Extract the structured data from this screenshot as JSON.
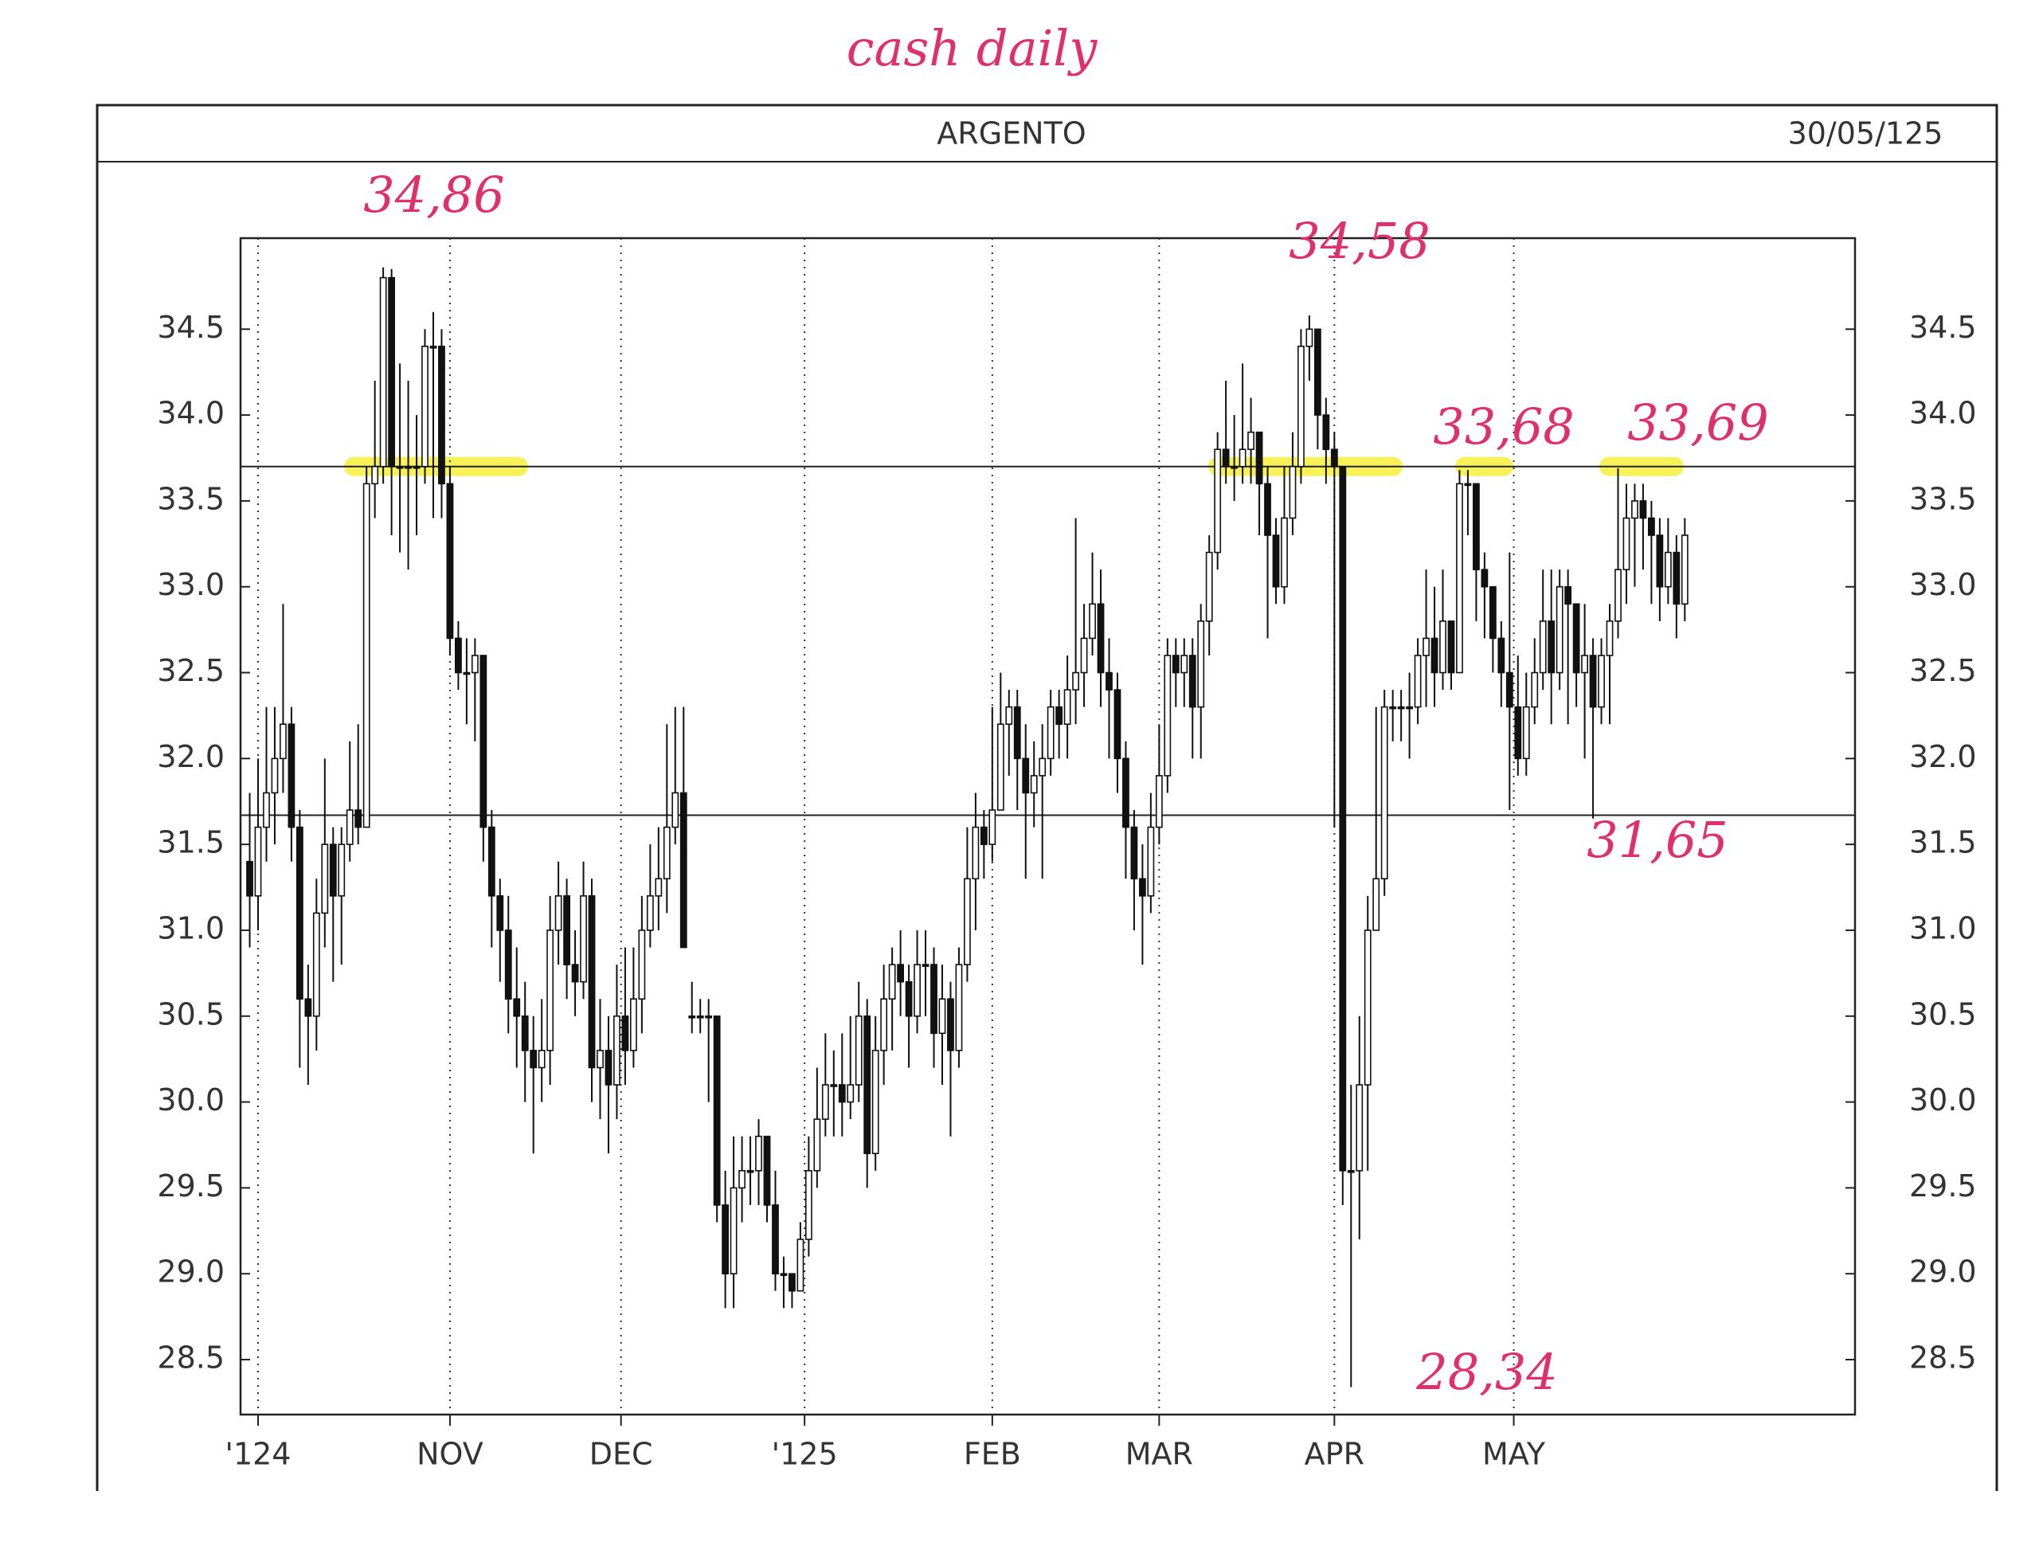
{
  "chart_data": {
    "type": "candlestick",
    "title": "ARGENTO",
    "subtitle": "30/05/125",
    "handwritten_title": "cash daily",
    "open": [
      31.4,
      31.2,
      31.6,
      31.8,
      32.0,
      32.2,
      31.6,
      30.6,
      30.5,
      31.1,
      31.5,
      31.2,
      31.5,
      31.7,
      31.6,
      33.6,
      33.7,
      34.8,
      33.7,
      33.7,
      33.7,
      33.7,
      34.4,
      34.4,
      33.6,
      32.7,
      32.5,
      32.5,
      32.6,
      31.6,
      31.2,
      31.0,
      30.6,
      30.5,
      30.3,
      30.2,
      30.3,
      31.0,
      31.2,
      30.8,
      30.7,
      31.2,
      30.2,
      30.3,
      30.1,
      30.5,
      30.3,
      30.6,
      31.0,
      31.2,
      31.3,
      31.6,
      31.8,
      30.5,
      30.5,
      30.5,
      30.5,
      29.4,
      29.0,
      29.5,
      29.6,
      29.6,
      29.8,
      29.4,
      29.0,
      29.0,
      28.9,
      29.2,
      29.6,
      29.9,
      30.1,
      30.1,
      30.0,
      30.1,
      30.5,
      29.7,
      30.3,
      30.6,
      30.8,
      30.7,
      30.5,
      30.8,
      30.8,
      30.4,
      30.6,
      30.3,
      30.8,
      31.3,
      31.6,
      31.5,
      31.7,
      32.2,
      32.3,
      32.0,
      31.8,
      31.9,
      32.0,
      32.3,
      32.2,
      32.4,
      32.5,
      32.7,
      32.9,
      32.5,
      32.4,
      32.0,
      31.6,
      31.3,
      31.2,
      31.6,
      31.9,
      32.6,
      32.5,
      32.6,
      32.3,
      32.8,
      33.2,
      33.8,
      33.7,
      33.7,
      33.8,
      33.9,
      33.6,
      33.3,
      33.0,
      33.4,
      33.7,
      34.4,
      34.5,
      34.0,
      33.8,
      33.7,
      29.6,
      29.6,
      30.1,
      31.0,
      31.3,
      32.3,
      32.3,
      32.3,
      32.3,
      32.6,
      32.7,
      32.5,
      32.8,
      32.5,
      33.6,
      33.6,
      33.1,
      33.0,
      32.7,
      32.5,
      32.3,
      32.0,
      32.3,
      32.5,
      32.8,
      32.5,
      33.0,
      32.9,
      32.5,
      32.6,
      32.3,
      32.6,
      32.8,
      33.1,
      33.4,
      33.5,
      33.4,
      33.3,
      33.0,
      33.2,
      32.9
    ],
    "high": [
      31.8,
      32.0,
      32.3,
      32.3,
      32.9,
      32.3,
      31.7,
      30.8,
      31.3,
      32.0,
      31.6,
      31.6,
      32.1,
      32.2,
      33.7,
      34.2,
      34.86,
      34.85,
      34.3,
      34.2,
      34.0,
      34.5,
      34.6,
      34.5,
      33.7,
      32.8,
      32.7,
      32.7,
      32.6,
      31.7,
      31.3,
      31.2,
      30.9,
      30.7,
      30.5,
      30.6,
      31.2,
      31.4,
      31.3,
      31.0,
      31.4,
      31.3,
      30.6,
      30.5,
      30.8,
      30.9,
      30.9,
      31.2,
      31.5,
      31.6,
      32.2,
      32.3,
      32.3,
      30.7,
      30.6,
      30.6,
      30.5,
      29.6,
      29.8,
      29.8,
      29.8,
      29.9,
      29.8,
      29.6,
      29.1,
      29.0,
      29.3,
      29.8,
      30.2,
      30.4,
      30.3,
      30.4,
      30.5,
      30.7,
      30.6,
      30.5,
      30.8,
      30.9,
      31.0,
      30.8,
      31.0,
      31.0,
      30.9,
      30.8,
      30.7,
      30.9,
      31.6,
      31.8,
      31.7,
      32.3,
      32.5,
      32.4,
      32.4,
      32.2,
      32.1,
      32.2,
      32.4,
      32.4,
      32.6,
      33.4,
      32.9,
      33.2,
      33.1,
      32.7,
      32.5,
      32.1,
      31.7,
      31.5,
      31.8,
      32.2,
      32.7,
      32.7,
      32.7,
      32.7,
      32.9,
      33.3,
      33.9,
      34.2,
      34.0,
      34.3,
      34.1,
      33.9,
      33.7,
      33.4,
      33.7,
      33.9,
      34.5,
      34.58,
      34.5,
      34.1,
      33.9,
      33.7,
      30.1,
      30.5,
      31.2,
      32.3,
      32.4,
      32.4,
      32.4,
      32.5,
      32.7,
      33.1,
      33.0,
      33.1,
      32.8,
      33.68,
      33.68,
      33.6,
      33.2,
      33.0,
      32.8,
      33.2,
      32.6,
      32.5,
      32.7,
      33.1,
      33.1,
      33.1,
      33.1,
      32.9,
      32.9,
      32.7,
      32.7,
      32.9,
      33.69,
      33.6,
      33.6,
      33.6,
      33.5,
      33.4,
      33.4,
      33.3,
      33.4
    ],
    "low": [
      30.9,
      31.0,
      31.4,
      31.5,
      31.8,
      31.4,
      30.2,
      30.1,
      30.3,
      30.9,
      30.7,
      30.8,
      31.4,
      31.5,
      31.6,
      33.4,
      33.6,
      33.3,
      33.2,
      33.1,
      33.3,
      33.6,
      33.4,
      33.4,
      32.6,
      32.4,
      32.2,
      32.1,
      31.4,
      30.9,
      30.7,
      30.4,
      30.2,
      30.0,
      29.7,
      30.0,
      30.1,
      30.8,
      30.6,
      30.5,
      30.6,
      30.0,
      29.9,
      29.7,
      29.9,
      30.1,
      30.2,
      30.4,
      30.9,
      31.0,
      31.1,
      31.5,
      30.9,
      30.4,
      30.4,
      30.0,
      29.3,
      28.8,
      28.8,
      29.3,
      29.4,
      29.4,
      29.3,
      28.9,
      28.8,
      28.8,
      28.9,
      29.1,
      29.5,
      29.8,
      29.8,
      29.8,
      29.9,
      30.0,
      29.5,
      29.6,
      30.1,
      30.3,
      30.5,
      30.2,
      30.4,
      30.5,
      30.2,
      30.1,
      29.8,
      30.2,
      30.7,
      31.0,
      31.3,
      31.4,
      31.7,
      31.9,
      31.7,
      31.3,
      31.6,
      31.3,
      31.9,
      32.0,
      32.0,
      32.2,
      32.3,
      32.6,
      32.3,
      32.0,
      31.8,
      31.3,
      31.0,
      30.8,
      31.1,
      31.5,
      31.8,
      32.3,
      32.3,
      32.0,
      32.0,
      32.6,
      33.1,
      33.6,
      33.5,
      33.6,
      33.6,
      33.3,
      32.7,
      32.9,
      32.9,
      33.3,
      33.6,
      34.2,
      33.8,
      33.6,
      31.6,
      29.4,
      28.34,
      29.2,
      29.6,
      31.0,
      31.2,
      32.1,
      32.1,
      32.0,
      32.2,
      32.3,
      32.3,
      32.4,
      32.4,
      32.5,
      33.3,
      32.8,
      32.7,
      32.5,
      32.3,
      31.7,
      31.9,
      31.9,
      32.2,
      32.4,
      32.2,
      32.4,
      32.2,
      32.3,
      32.0,
      31.65,
      32.2,
      32.2,
      32.7,
      32.9,
      33.0,
      33.1,
      32.9,
      32.8,
      32.9,
      32.7,
      32.8
    ],
    "close": [
      31.2,
      31.6,
      31.8,
      32.0,
      32.2,
      31.6,
      30.6,
      30.5,
      31.1,
      31.5,
      31.2,
      31.5,
      31.7,
      31.6,
      33.6,
      33.7,
      34.8,
      33.7,
      33.7,
      33.7,
      33.7,
      34.4,
      34.4,
      33.6,
      32.7,
      32.5,
      32.5,
      32.6,
      31.6,
      31.2,
      31.0,
      30.6,
      30.5,
      30.3,
      30.2,
      30.3,
      31.0,
      31.2,
      30.8,
      30.7,
      31.2,
      30.2,
      30.3,
      30.1,
      30.5,
      30.3,
      30.6,
      31.0,
      31.2,
      31.3,
      31.6,
      31.8,
      30.9,
      30.5,
      30.5,
      30.5,
      29.4,
      29.0,
      29.5,
      29.6,
      29.6,
      29.8,
      29.4,
      29.0,
      29.0,
      28.9,
      29.2,
      29.6,
      29.9,
      30.1,
      30.1,
      30.0,
      30.1,
      30.5,
      29.7,
      30.3,
      30.6,
      30.8,
      30.7,
      30.5,
      30.8,
      30.8,
      30.4,
      30.6,
      30.3,
      30.8,
      31.3,
      31.6,
      31.5,
      31.7,
      32.2,
      32.3,
      32.0,
      31.8,
      31.9,
      32.0,
      32.3,
      32.2,
      32.4,
      32.5,
      32.7,
      32.9,
      32.5,
      32.4,
      32.0,
      31.6,
      31.3,
      31.2,
      31.6,
      31.9,
      32.6,
      32.5,
      32.6,
      32.3,
      32.8,
      33.2,
      33.8,
      33.7,
      33.7,
      33.8,
      33.9,
      33.6,
      33.3,
      33.0,
      33.4,
      33.7,
      34.4,
      34.5,
      34.0,
      33.8,
      33.7,
      29.6,
      29.6,
      30.1,
      31.0,
      31.3,
      32.3,
      32.3,
      32.3,
      32.3,
      32.6,
      32.7,
      32.5,
      32.8,
      32.5,
      33.6,
      33.6,
      33.1,
      33.0,
      32.7,
      32.5,
      32.3,
      32.0,
      32.3,
      32.5,
      32.8,
      32.5,
      33.0,
      32.9,
      32.5,
      32.6,
      32.3,
      32.6,
      32.8,
      33.1,
      33.4,
      33.5,
      33.4,
      33.3,
      33.0,
      33.2,
      32.9,
      33.3
    ],
    "xlim": [
      -1.1,
      192.4
    ],
    "xticks": [
      {
        "value": 1,
        "label": "'124"
      },
      {
        "value": 24,
        "label": "NOV"
      },
      {
        "value": 44.5,
        "label": "DEC"
      },
      {
        "value": 66.5,
        "label": "'125"
      },
      {
        "value": 89,
        "label": "FEB"
      },
      {
        "value": 109,
        "label": "MAR"
      },
      {
        "value": 130,
        "label": "APR"
      },
      {
        "value": 151.5,
        "label": "MAY"
      }
    ],
    "ylim": [
      28.18,
      35.03
    ],
    "yticks": [
      28.5,
      {
        "value": 29,
        "label": "29.0"
      },
      29.5,
      {
        "value": 30,
        "label": "30.0"
      },
      30.5,
      {
        "value": 31,
        "label": "31.0"
      },
      31.5,
      {
        "value": 32,
        "label": "32.0"
      },
      32.5,
      {
        "value": 33,
        "label": "33.0"
      },
      33.5,
      {
        "value": 34,
        "label": "34.0"
      },
      34.5
    ],
    "vertical_grid": true,
    "reference_lines": [
      33.7,
      31.67
    ],
    "annotations": [
      {
        "label": "34,86",
        "value": 34.86
      },
      {
        "label": "34,58",
        "value": 34.58
      },
      {
        "label": "33,68",
        "value": 33.68
      },
      {
        "label": "33,69",
        "value": 33.69
      },
      {
        "label": "31,65",
        "value": 31.65
      },
      {
        "label": "28,34",
        "value": 28.34
      }
    ],
    "annotation_color": "#e0306a",
    "highlight_color": "#f4f03a"
  }
}
